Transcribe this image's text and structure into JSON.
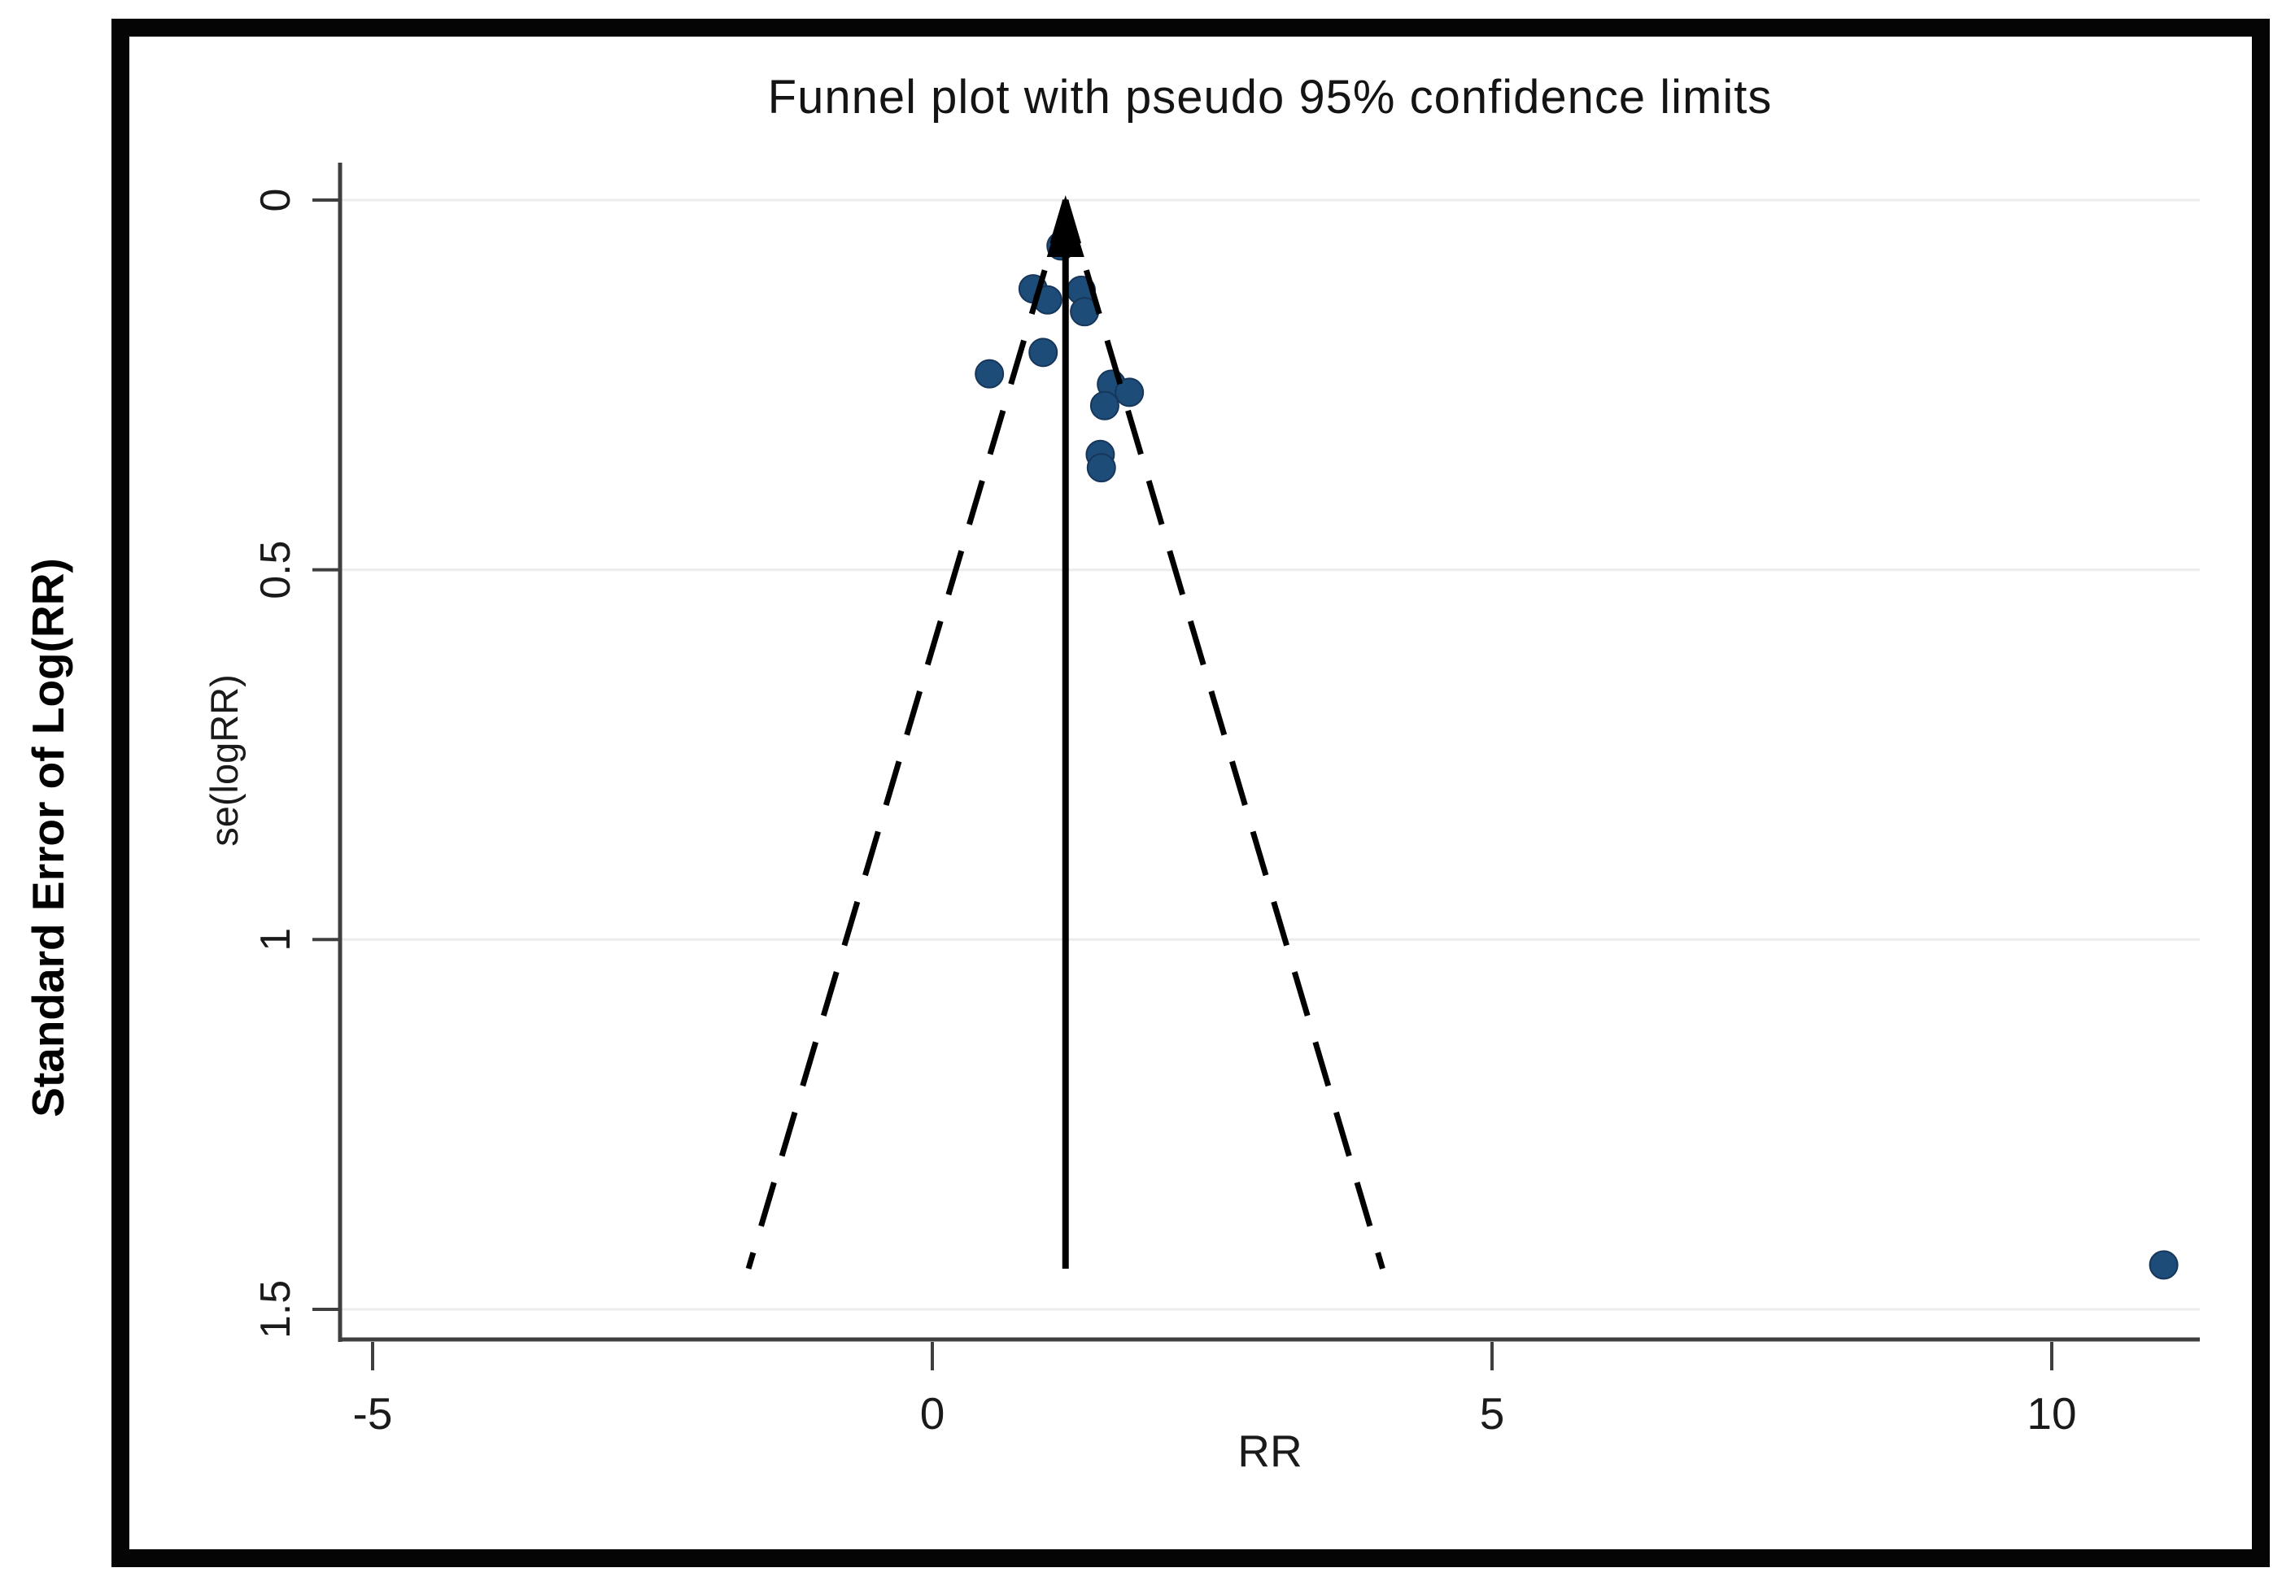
{
  "outer_label": "Standard Error of Log(RR)",
  "chart_data": {
    "type": "scatter",
    "title": "Funnel plot with pseudo 95% confidence limits",
    "xlabel": "RR",
    "ylabel_inner": "se(logRR)",
    "ylabel_outer": "Standard Error of Log(RR)",
    "grid": true,
    "legend": "none",
    "x_axis": {
      "min": -5.3,
      "max": 11.35,
      "ticks": [
        {
          "value": -5,
          "label": "-5"
        },
        {
          "value": 0,
          "label": "0"
        },
        {
          "value": 5,
          "label": "5"
        },
        {
          "value": 10,
          "label": "10"
        }
      ]
    },
    "y_axis": {
      "min": 0,
      "max": 1.545,
      "inverted": true,
      "tick_labels_rotated": true,
      "ticks": [
        {
          "value": 0,
          "label": "0"
        },
        {
          "value": 0.5,
          "label": "0.5"
        },
        {
          "value": 1,
          "label": "1"
        },
        {
          "value": 1.5,
          "label": "1.5"
        }
      ]
    },
    "funnel": {
      "center_rr": 1.19,
      "z": 1.96,
      "se_top": 0,
      "se_bottom": 1.445,
      "description": "pseudo 95% confidence limits: RR = center ± 1.96·se"
    },
    "points": [
      {
        "rr": 1.15,
        "se": 0.062
      },
      {
        "rr": 0.9,
        "se": 0.12
      },
      {
        "rr": 1.03,
        "se": 0.135
      },
      {
        "rr": 1.33,
        "se": 0.122
      },
      {
        "rr": 1.36,
        "se": 0.151
      },
      {
        "rr": 0.99,
        "se": 0.206
      },
      {
        "rr": 0.51,
        "se": 0.235
      },
      {
        "rr": 1.6,
        "se": 0.249
      },
      {
        "rr": 1.76,
        "se": 0.26
      },
      {
        "rr": 1.54,
        "se": 0.278
      },
      {
        "rr": 1.5,
        "se": 0.344
      },
      {
        "rr": 1.51,
        "se": 0.362
      },
      {
        "rr": 11.0,
        "se": 1.44
      }
    ],
    "colors": {
      "point_fill": "#1e4c78",
      "point_edge": "#16365a",
      "axis": "#3f3f3f",
      "grid": "#ececec",
      "funnel_line": "#000000",
      "frame": "#050505",
      "text": "#1a1a1a"
    }
  }
}
